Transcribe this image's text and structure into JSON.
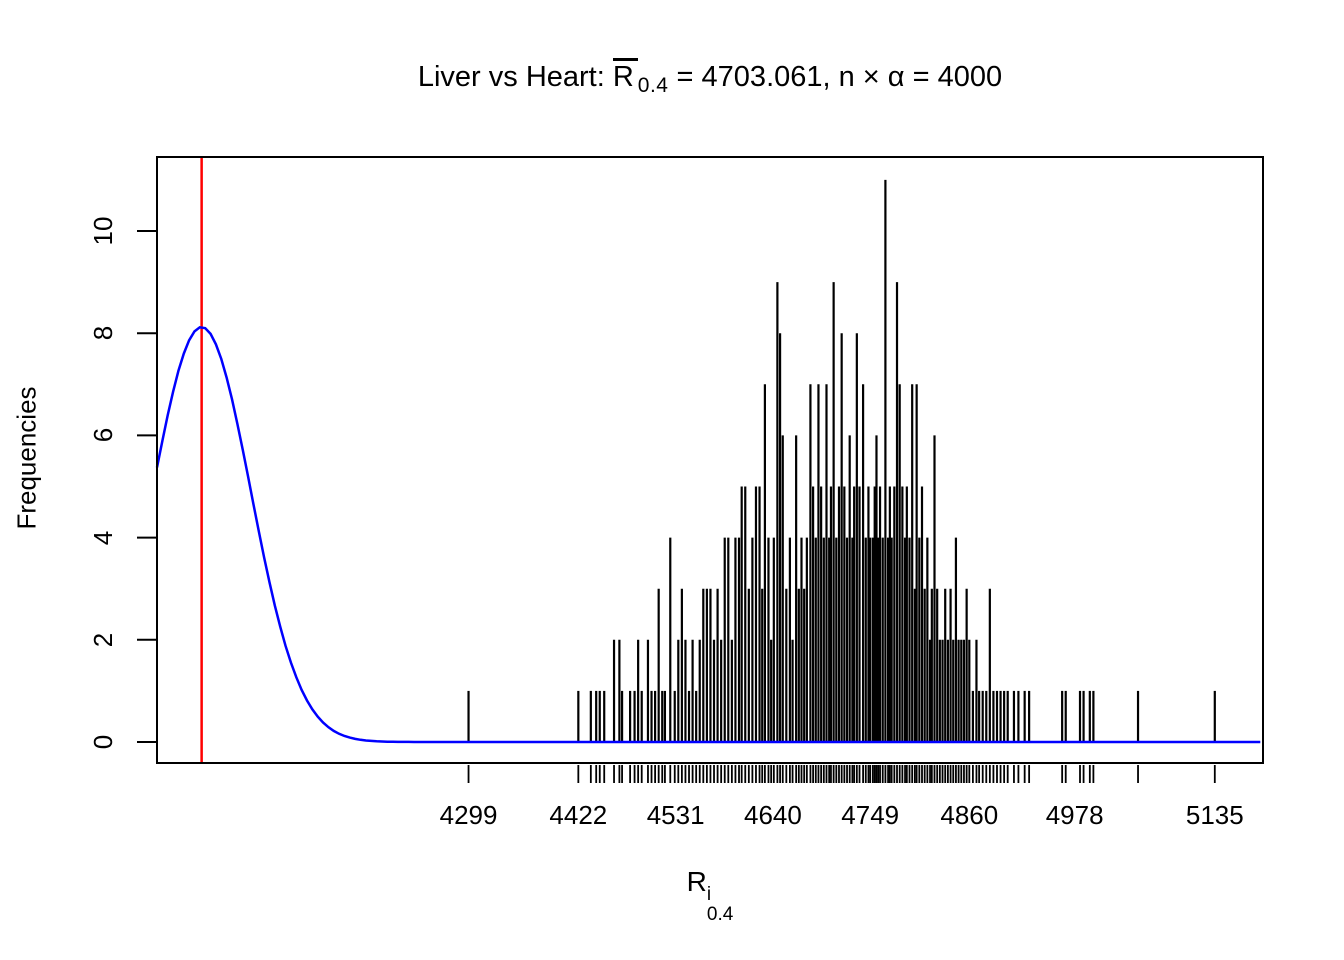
{
  "title": {
    "prefix": "Liver vs Heart: ",
    "rbar_letter": "R",
    "rbar_sub": "0.4",
    "suffix": " = 4703.061, n × α = 4000"
  },
  "xlabel_parts": {
    "base": "R",
    "sup": "i",
    "sub": "0.4"
  },
  "chart_data": {
    "type": "bar",
    "subtype": "frequency-spike-histogram-with-density-overlay",
    "title": "Liver vs Heart: R̄0.4 = 4703.061, n × α = 4000",
    "xlabel": "R^i_0.4",
    "ylabel": "Frequencies",
    "x_tick_values": [
      4299,
      4422,
      4531,
      4640,
      4749,
      4860,
      4978,
      5135
    ],
    "x_tick_labels": [
      "4299",
      "4422",
      "4531",
      "4640",
      "4749",
      "4860",
      "4978",
      "5135"
    ],
    "y_tick_values": [
      0,
      2,
      4,
      6,
      8,
      10
    ],
    "y_tick_labels": [
      "0",
      "2",
      "4",
      "6",
      "8",
      "10"
    ],
    "xlim": [
      3950,
      5189
    ],
    "ylim": [
      -0.44,
      11.44
    ],
    "grid": false,
    "legend": "none",
    "rug": true,
    "red_vline_x": 4000,
    "curve": {
      "shape": "normal-density",
      "center": 4000,
      "sd": 55,
      "peak": 8.12
    },
    "colors": {
      "spikes": "#000000",
      "curve": "#0000ff",
      "vline": "#ff0000",
      "axis": "#000000",
      "background": "#ffffff"
    },
    "spikes": [
      [
        4299,
        1
      ],
      [
        4422,
        1
      ],
      [
        4436,
        1
      ],
      [
        4442,
        1
      ],
      [
        4446,
        1
      ],
      [
        4451,
        1
      ],
      [
        4462,
        2
      ],
      [
        4468,
        2
      ],
      [
        4471,
        1
      ],
      [
        4480,
        1
      ],
      [
        4485,
        1
      ],
      [
        4489,
        2
      ],
      [
        4493,
        1
      ],
      [
        4500,
        2
      ],
      [
        4504,
        1
      ],
      [
        4508,
        1
      ],
      [
        4512,
        3
      ],
      [
        4516,
        1
      ],
      [
        4519,
        1
      ],
      [
        4525,
        4
      ],
      [
        4530,
        1
      ],
      [
        4534,
        2
      ],
      [
        4538,
        3
      ],
      [
        4542,
        2
      ],
      [
        4546,
        1
      ],
      [
        4550,
        2
      ],
      [
        4554,
        1
      ],
      [
        4558,
        2
      ],
      [
        4562,
        3
      ],
      [
        4566,
        3
      ],
      [
        4570,
        3
      ],
      [
        4574,
        2
      ],
      [
        4578,
        3
      ],
      [
        4582,
        2
      ],
      [
        4586,
        4
      ],
      [
        4590,
        4
      ],
      [
        4594,
        2
      ],
      [
        4598,
        4
      ],
      [
        4602,
        4
      ],
      [
        4605,
        5
      ],
      [
        4609,
        5
      ],
      [
        4613,
        3
      ],
      [
        4617,
        4
      ],
      [
        4621,
        5
      ],
      [
        4625,
        5
      ],
      [
        4628,
        3
      ],
      [
        4631,
        7
      ],
      [
        4635,
        4
      ],
      [
        4638,
        2
      ],
      [
        4641,
        4
      ],
      [
        4645,
        9
      ],
      [
        4648,
        8
      ],
      [
        4651,
        6
      ],
      [
        4655,
        3
      ],
      [
        4659,
        4
      ],
      [
        4662,
        2
      ],
      [
        4666,
        6
      ],
      [
        4669,
        3
      ],
      [
        4672,
        4
      ],
      [
        4675,
        3
      ],
      [
        4678,
        4
      ],
      [
        4682,
        7
      ],
      [
        4685,
        5
      ],
      [
        4688,
        4
      ],
      [
        4691,
        7
      ],
      [
        4694,
        5
      ],
      [
        4697,
        4
      ],
      [
        4700,
        7
      ],
      [
        4703,
        4
      ],
      [
        4705,
        5
      ],
      [
        4708,
        9
      ],
      [
        4711,
        4
      ],
      [
        4714,
        5
      ],
      [
        4717,
        8
      ],
      [
        4720,
        5
      ],
      [
        4723,
        4
      ],
      [
        4726,
        6
      ],
      [
        4729,
        4
      ],
      [
        4731,
        5
      ],
      [
        4734,
        8
      ],
      [
        4737,
        5
      ],
      [
        4741,
        7
      ],
      [
        4744,
        4
      ],
      [
        4747,
        5
      ],
      [
        4749,
        4
      ],
      [
        4752,
        4
      ],
      [
        4754,
        5
      ],
      [
        4756,
        6
      ],
      [
        4758,
        4
      ],
      [
        4760,
        5
      ],
      [
        4763,
        4
      ],
      [
        4766,
        11
      ],
      [
        4769,
        4
      ],
      [
        4771,
        5
      ],
      [
        4773,
        4
      ],
      [
        4776,
        5
      ],
      [
        4779,
        9
      ],
      [
        4782,
        7
      ],
      [
        4785,
        5
      ],
      [
        4788,
        4
      ],
      [
        4790,
        5
      ],
      [
        4793,
        4
      ],
      [
        4796,
        7
      ],
      [
        4799,
        3
      ],
      [
        4801,
        7
      ],
      [
        4804,
        4
      ],
      [
        4807,
        5
      ],
      [
        4810,
        3
      ],
      [
        4813,
        4
      ],
      [
        4816,
        2
      ],
      [
        4818,
        3
      ],
      [
        4821,
        6
      ],
      [
        4824,
        3
      ],
      [
        4827,
        2
      ],
      [
        4830,
        2
      ],
      [
        4833,
        3
      ],
      [
        4836,
        2
      ],
      [
        4839,
        3
      ],
      [
        4842,
        2
      ],
      [
        4845,
        4
      ],
      [
        4848,
        2
      ],
      [
        4851,
        2
      ],
      [
        4854,
        2
      ],
      [
        4857,
        3
      ],
      [
        4860,
        2
      ],
      [
        4864,
        1
      ],
      [
        4868,
        2
      ],
      [
        4871,
        1
      ],
      [
        4875,
        1
      ],
      [
        4879,
        1
      ],
      [
        4883,
        3
      ],
      [
        4887,
        1
      ],
      [
        4891,
        1
      ],
      [
        4895,
        1
      ],
      [
        4899,
        1
      ],
      [
        4903,
        1
      ],
      [
        4910,
        1
      ],
      [
        4915,
        1
      ],
      [
        4922,
        1
      ],
      [
        4927,
        1
      ],
      [
        4964,
        1
      ],
      [
        4968,
        1
      ],
      [
        4984,
        1
      ],
      [
        4988,
        1
      ],
      [
        4995,
        1
      ],
      [
        4999,
        1
      ],
      [
        5049,
        1
      ],
      [
        5135,
        1
      ]
    ]
  }
}
